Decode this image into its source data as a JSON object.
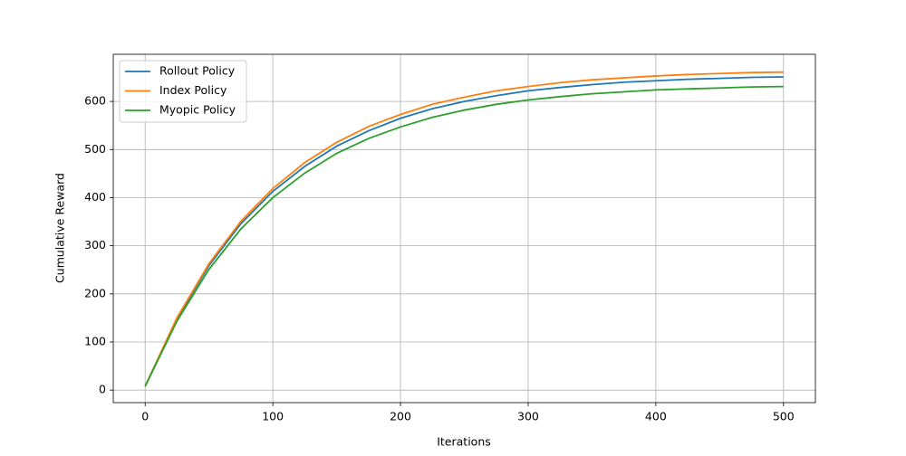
{
  "chart_data": {
    "type": "line",
    "x_label": "Iterations",
    "y_label": "Cumulative Reward",
    "x": [
      0,
      25,
      50,
      75,
      100,
      125,
      150,
      175,
      200,
      225,
      250,
      275,
      300,
      325,
      350,
      375,
      400,
      425,
      450,
      475,
      500
    ],
    "series": [
      {
        "name": "Rollout Policy",
        "color": "#1f77b4",
        "values": [
          8,
          149,
          259,
          346,
          413,
          465,
          507,
          539,
          565,
          585,
          600,
          612,
          622,
          629,
          635,
          640,
          643,
          646,
          648,
          650,
          651
        ]
      },
      {
        "name": "Index Policy",
        "color": "#ff7f0e",
        "values": [
          8,
          151,
          263,
          351,
          419,
          473,
          515,
          548,
          573,
          594,
          609,
          622,
          631,
          639,
          645,
          649,
          653,
          656,
          658,
          660,
          661
        ]
      },
      {
        "name": "Myopic Policy",
        "color": "#2ca02c",
        "values": [
          8,
          144,
          251,
          335,
          400,
          451,
          492,
          523,
          547,
          567,
          582,
          594,
          603,
          610,
          616,
          620,
          624,
          626,
          628,
          630,
          631
        ]
      }
    ],
    "xlim": [
      -25,
      525
    ],
    "ylim": [
      -26,
      698
    ],
    "xticks": [
      0,
      100,
      200,
      300,
      400,
      500
    ],
    "yticks": [
      0,
      100,
      200,
      300,
      400,
      500,
      600
    ],
    "grid": true,
    "legend": "upper-left"
  }
}
